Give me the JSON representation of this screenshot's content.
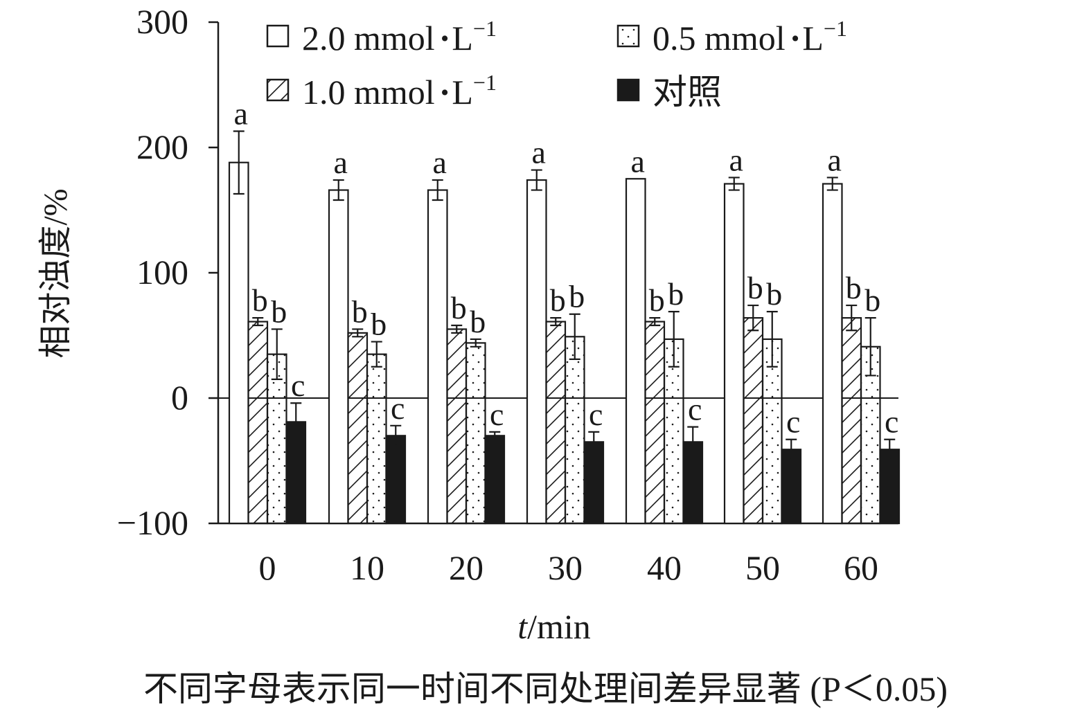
{
  "chart_data": {
    "type": "bar",
    "title": "",
    "xlabel_italic": "t",
    "xlabel_rest": "/min",
    "ylabel": "相对浊度/%",
    "ylim": [
      -100,
      300
    ],
    "yticks": [
      -100,
      0,
      100,
      200,
      300
    ],
    "ytick_labels": [
      "−100",
      "0",
      "100",
      "200",
      "300"
    ],
    "categories": [
      "0",
      "10",
      "20",
      "30",
      "40",
      "50",
      "60"
    ],
    "legend": {
      "placement": "top"
    },
    "series": [
      {
        "name": "2.0 mmol·L⁻¹",
        "legend_main": "2.0 mmol",
        "legend_dot": "·",
        "legend_unit": "L",
        "legend_sup": "−1",
        "pattern": "open",
        "values": [
          188,
          166,
          166,
          174,
          175,
          171,
          171
        ],
        "errors": [
          25,
          8,
          8,
          8,
          0,
          5,
          5
        ],
        "letters": [
          "a",
          "a",
          "a",
          "a",
          "a",
          "a",
          "a"
        ]
      },
      {
        "name": "1.0 mmol·L⁻¹",
        "legend_main": "1.0 mmol",
        "legend_dot": "·",
        "legend_unit": "L",
        "legend_sup": "−1",
        "pattern": "hatch",
        "values": [
          61,
          52,
          55,
          61,
          61,
          64,
          64
        ],
        "errors": [
          3,
          3,
          3,
          3,
          3,
          10,
          10
        ],
        "letters": [
          "b",
          "b",
          "b",
          "b",
          "b",
          "b",
          "b"
        ]
      },
      {
        "name": "0.5 mmol·L⁻¹",
        "legend_main": "0.5 mmol",
        "legend_dot": "·",
        "legend_unit": "L",
        "legend_sup": "−1",
        "pattern": "dotted",
        "values": [
          35,
          35,
          44,
          49,
          47,
          47,
          41
        ],
        "errors": [
          20,
          10,
          3,
          18,
          22,
          22,
          23
        ],
        "letters": [
          "b",
          "b",
          "b",
          "b",
          "b",
          "b",
          "b"
        ]
      },
      {
        "name": "对照",
        "legend_main": "对照",
        "legend_dot": "",
        "legend_unit": "",
        "legend_sup": "",
        "pattern": "solid",
        "values": [
          -19,
          -30,
          -30,
          -35,
          -35,
          -41,
          -41
        ],
        "errors": [
          15,
          8,
          3,
          8,
          12,
          8,
          8
        ],
        "letters": [
          "c",
          "c",
          "c",
          "c",
          "c",
          "c",
          "c"
        ]
      }
    ]
  },
  "caption": "不同字母表示同一时间不同处理间差异显著 (P＜0.05)"
}
